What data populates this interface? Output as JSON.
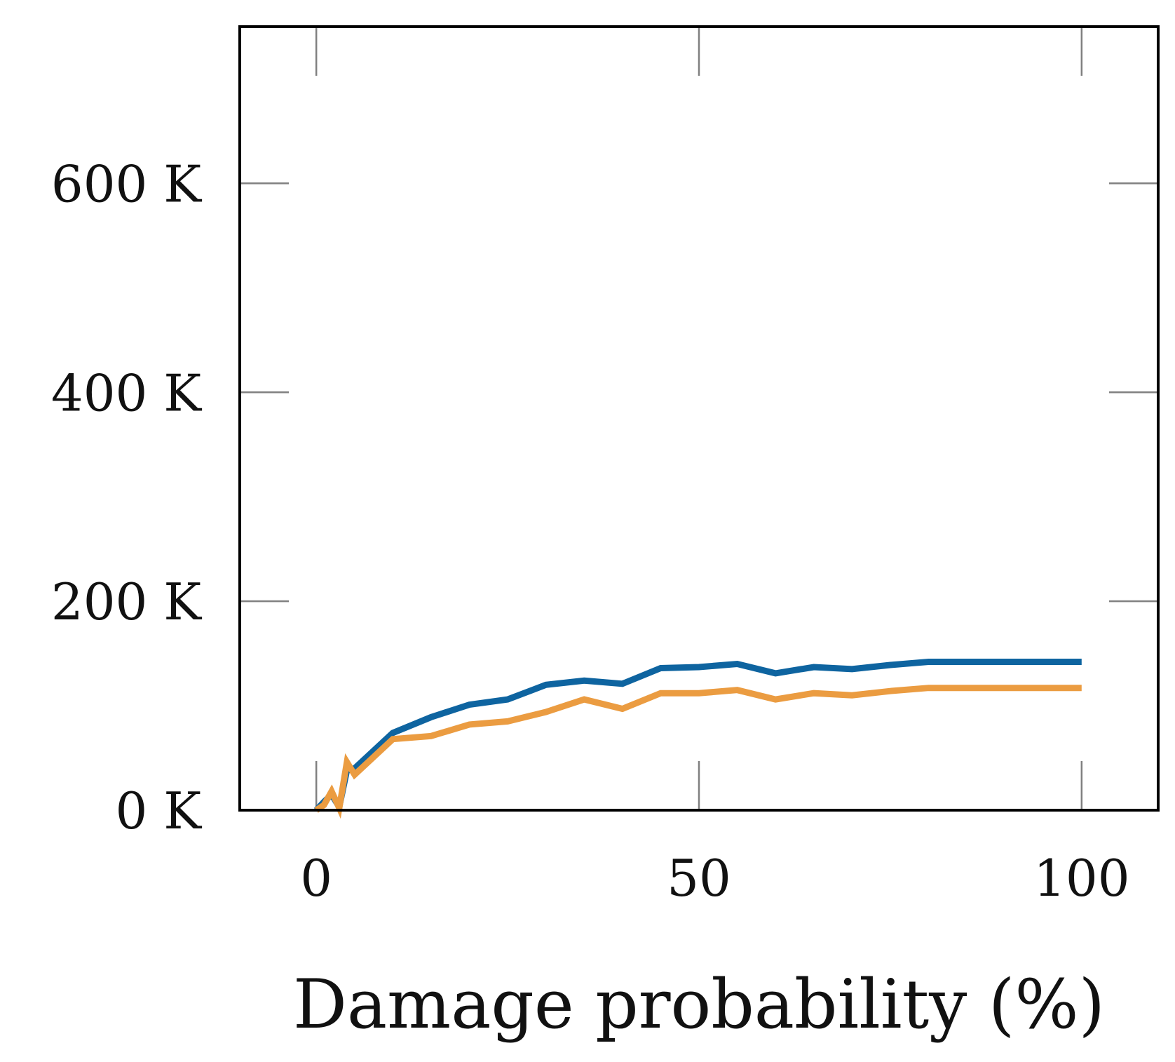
{
  "chart_data": {
    "type": "line",
    "title": "",
    "xlabel": "Damage probability (%)",
    "ylabel": "",
    "xlim": [
      -10,
      110
    ],
    "ylim": [
      0,
      750000
    ],
    "grid": false,
    "x_ticks": [
      0,
      50,
      100
    ],
    "x_tick_labels": [
      "0",
      "50",
      "100"
    ],
    "y_ticks": [
      0,
      200000,
      400000,
      600000
    ],
    "y_tick_labels": [
      "0 K",
      "200 K",
      "400 K",
      "600 K"
    ],
    "series": [
      {
        "name": "series-blue",
        "color": "#0e64a0",
        "x": [
          0,
          1,
          2,
          3,
          4,
          5,
          10,
          15,
          20,
          25,
          30,
          35,
          40,
          45,
          50,
          55,
          60,
          65,
          70,
          75,
          80,
          85,
          90,
          95,
          100
        ],
        "values": [
          0,
          8000,
          15000,
          3000,
          38000,
          40000,
          74000,
          89000,
          101000,
          106000,
          120000,
          124000,
          121000,
          136000,
          137000,
          140000,
          131000,
          137000,
          135000,
          139000,
          142000,
          142000,
          142000,
          142000,
          142000
        ]
      },
      {
        "name": "series-orange",
        "color": "#eb9c41",
        "x": [
          0,
          1,
          2,
          3,
          4,
          5,
          10,
          15,
          20,
          25,
          30,
          35,
          40,
          45,
          50,
          55,
          60,
          65,
          70,
          75,
          80,
          85,
          90,
          95,
          100
        ],
        "values": [
          0,
          5000,
          18000,
          2000,
          46000,
          34000,
          68000,
          71000,
          82000,
          85000,
          94000,
          106000,
          97000,
          112000,
          112000,
          115000,
          106000,
          112000,
          110000,
          114000,
          117000,
          117000,
          117000,
          117000,
          117000
        ]
      }
    ]
  }
}
